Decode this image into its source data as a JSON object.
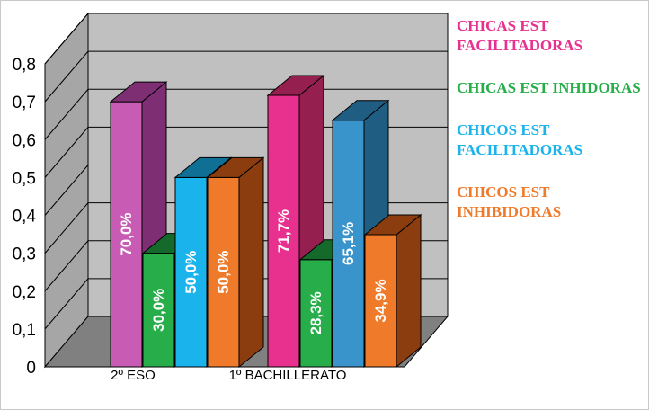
{
  "chart_data": {
    "type": "bar",
    "title": "",
    "xlabel": "",
    "ylabel": "",
    "ylim": [
      0,
      0.8
    ],
    "yticks": [
      "0",
      "0,1",
      "0,2",
      "0,3",
      "0,4",
      "0,5",
      "0,6",
      "0,7",
      "0,8"
    ],
    "categories": [
      "2º ESO",
      "1º BACHILLERATO"
    ],
    "series": [
      {
        "name": "CHICAS EST FACILITADORAS",
        "values": [
          0.7,
          0.717
        ],
        "labels": [
          "70,0%",
          "71,7%"
        ],
        "colors": [
          "#c85cb4",
          "#e8318f"
        ],
        "side_colors": [
          "#7e2f73",
          "#95204f"
        ]
      },
      {
        "name": "CHICAS EST INHIDORAS",
        "values": [
          0.3,
          0.283
        ],
        "labels": [
          "30,0%",
          "28,3%"
        ],
        "colors": [
          "#27ae4a",
          "#27ae4a"
        ],
        "side_colors": [
          "#156a2b",
          "#156a2b"
        ]
      },
      {
        "name": "CHICOS EST FACILITADORAS",
        "values": [
          0.5,
          0.651
        ],
        "labels": [
          "50,0%",
          "65,1%"
        ],
        "colors": [
          "#1ab3ec",
          "#3a94cc"
        ],
        "side_colors": [
          "#0f6f95",
          "#1f5d82"
        ]
      },
      {
        "name": "CHICOS EST INHIBIDORAS",
        "values": [
          0.5,
          0.349
        ],
        "labels": [
          "50,0%",
          "34,9%"
        ],
        "colors": [
          "#ef7a2a",
          "#ef7a2a"
        ],
        "side_colors": [
          "#8c3d10",
          "#8c3d10"
        ]
      }
    ],
    "legend_position": "right",
    "grid": true,
    "legend_colors": [
      "#e8318f",
      "#27ae4a",
      "#1ab3ec",
      "#ef7a2a"
    ]
  }
}
